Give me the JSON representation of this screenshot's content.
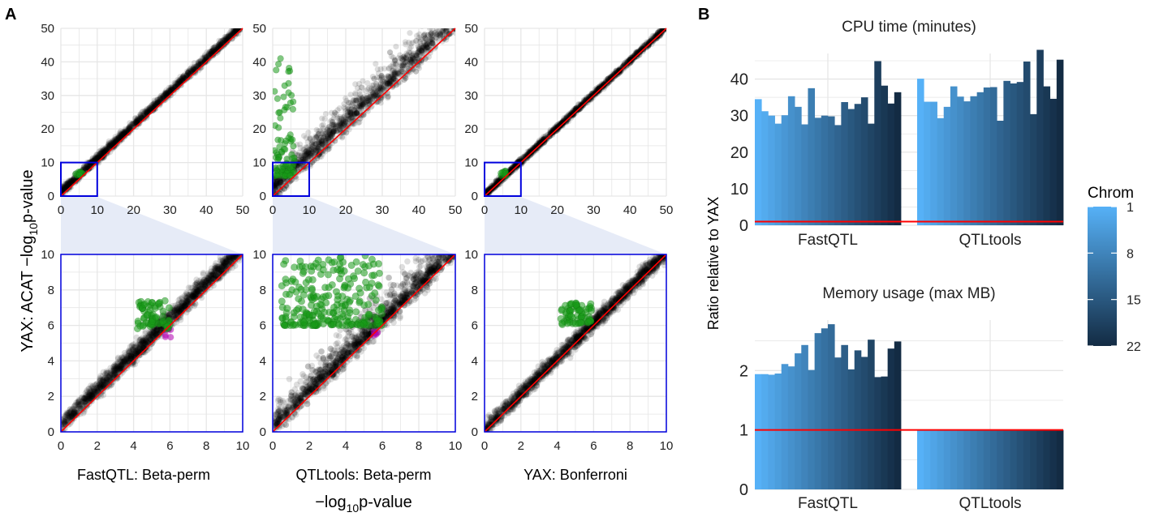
{
  "panel_labels": {
    "a": "A",
    "b": "B"
  },
  "panel_a": {
    "ylabel_prefix": "YAX: ACAT −log",
    "ylabel_sub": "10",
    "ylabel_suffix": "p-value",
    "xlabel_prefix": "−log",
    "xlabel_sub": "10",
    "xlabel_suffix": "p-value",
    "methods": [
      "FastQTL: Beta-perm",
      "QTLtools: Beta-perm",
      "YAX: Bonferroni"
    ]
  },
  "colors": {
    "points": "#000000",
    "significant_both": "#1a9a1a",
    "significant_other_only": "#b000b0",
    "diagonal": "#ff0000",
    "zoom_box": "#0000dd",
    "zoom_band": "#dde4f4",
    "grid": "#e6e6e6",
    "bar_low": "#56b1f7",
    "bar_high": "#132b43",
    "reference_line": "#ff0000"
  },
  "chart_data": [
    {
      "type": "scatter",
      "title": "FastQTL: Beta-perm",
      "view": "full",
      "xlim": [
        0,
        50
      ],
      "ylim": [
        0,
        50
      ],
      "xticks": [
        0,
        10,
        20,
        30,
        40,
        50
      ],
      "yticks": [
        0,
        10,
        20,
        30,
        40,
        50
      ],
      "point_cloud": {
        "along_diagonal_from": 0,
        "along_diagonal_to": 50,
        "offset_above_diagonal": 1.5
      },
      "highlight_green": {
        "x": [
          4,
          6
        ],
        "y": [
          6,
          7.5
        ]
      },
      "zoom_box": {
        "x": [
          0,
          10
        ],
        "y": [
          0,
          10
        ]
      },
      "reference_line": "y = x"
    },
    {
      "type": "scatter",
      "title": "QTLtools: Beta-perm",
      "view": "full",
      "xlim": [
        0,
        50
      ],
      "ylim": [
        0,
        50
      ],
      "xticks": [
        0,
        10,
        20,
        30,
        40,
        50
      ],
      "yticks": [
        0,
        10,
        20,
        30,
        40,
        50
      ],
      "point_cloud": {
        "along_diagonal_from": 0,
        "along_diagonal_to": 50,
        "spread": "wide, mostly above diagonal"
      },
      "highlight_green": {
        "x": [
          0.5,
          6
        ],
        "y": [
          6,
          41
        ]
      },
      "zoom_box": {
        "x": [
          0,
          10
        ],
        "y": [
          0,
          10
        ]
      },
      "reference_line": "y = x"
    },
    {
      "type": "scatter",
      "title": "YAX: Bonferroni",
      "view": "full",
      "xlim": [
        0,
        50
      ],
      "ylim": [
        0,
        50
      ],
      "xticks": [
        0,
        10,
        20,
        30,
        40,
        50
      ],
      "yticks": [
        0,
        10,
        20,
        30,
        40,
        50
      ],
      "point_cloud": {
        "along_diagonal_from": 0,
        "along_diagonal_to": 50,
        "spread": "tight"
      },
      "highlight_green": {
        "x": [
          4,
          6
        ],
        "y": [
          6,
          7.5
        ]
      },
      "zoom_box": {
        "x": [
          0,
          10
        ],
        "y": [
          0,
          10
        ]
      },
      "reference_line": "y = x"
    },
    {
      "type": "scatter",
      "title": "FastQTL: Beta-perm",
      "view": "zoom",
      "xlim": [
        0,
        10
      ],
      "ylim": [
        0,
        10
      ],
      "xticks": [
        0,
        2,
        4,
        6,
        8,
        10
      ],
      "yticks": [
        0,
        2,
        4,
        6,
        8,
        10
      ],
      "highlight_green": {
        "x": [
          4.2,
          6.0
        ],
        "y": [
          5.8,
          7.4
        ]
      },
      "highlight_magenta": {
        "x": [
          5.7,
          6.1
        ],
        "y": [
          5.3,
          5.8
        ]
      },
      "reference_line": "y = x"
    },
    {
      "type": "scatter",
      "title": "QTLtools: Beta-perm",
      "view": "zoom",
      "xlim": [
        0,
        10
      ],
      "ylim": [
        0,
        10
      ],
      "xticks": [
        0,
        2,
        4,
        6,
        8,
        10
      ],
      "yticks": [
        0,
        2,
        4,
        6,
        8,
        10
      ],
      "highlight_green": {
        "x": [
          0.5,
          6.0
        ],
        "y": [
          6.0,
          10.0
        ]
      },
      "highlight_magenta": {
        "x": [
          5.5,
          6.0
        ],
        "y": [
          5.4,
          5.8
        ]
      },
      "reference_line": "y = x"
    },
    {
      "type": "scatter",
      "title": "YAX: Bonferroni",
      "view": "zoom",
      "xlim": [
        0,
        10
      ],
      "ylim": [
        0,
        10
      ],
      "xticks": [
        0,
        2,
        4,
        6,
        8,
        10
      ],
      "yticks": [
        0,
        2,
        4,
        6,
        8,
        10
      ],
      "highlight_green": {
        "x": [
          4.2,
          5.9
        ],
        "y": [
          6.0,
          7.3
        ]
      },
      "reference_line": "y = x"
    },
    {
      "type": "bar",
      "title": "CPU time (minutes)",
      "ylabel": "Ratio relative to YAX",
      "ylim": [
        0,
        47
      ],
      "yticks": [
        0,
        10,
        20,
        30,
        40
      ],
      "groups": [
        "FastQTL",
        "QTLtools"
      ],
      "chromosomes": [
        1,
        2,
        3,
        4,
        5,
        6,
        7,
        8,
        9,
        10,
        11,
        12,
        13,
        14,
        15,
        16,
        17,
        18,
        19,
        20,
        21,
        22
      ],
      "series": [
        {
          "name": "FastQTL",
          "values": [
            34.5,
            31.2,
            30.0,
            27.8,
            30.1,
            35.3,
            32.4,
            27.6,
            37.5,
            29.4,
            30.0,
            29.8,
            27.4,
            33.7,
            31.8,
            33.2,
            35.0,
            27.8,
            44.9,
            38.2,
            33.3,
            36.4
          ]
        },
        {
          "name": "QTLtools",
          "values": [
            40.1,
            33.8,
            33.8,
            29.3,
            32.4,
            38.0,
            35.2,
            33.9,
            35.3,
            36.4,
            37.7,
            37.8,
            28.6,
            39.5,
            38.8,
            39.2,
            44.8,
            30.4,
            48.0,
            38.0,
            34.6,
            45.3
          ]
        }
      ],
      "legend": {
        "title": "Chrom",
        "ticks": [
          1,
          8,
          15,
          22
        ],
        "range": [
          1,
          22
        ],
        "position": "right"
      },
      "reference_line": 1
    },
    {
      "type": "bar",
      "title": "Memory usage (max MB)",
      "ylabel": "Ratio relative to YAX",
      "ylim": [
        0,
        2.85
      ],
      "yticks": [
        0,
        1,
        2
      ],
      "groups": [
        "FastQTL",
        "QTLtools"
      ],
      "chromosomes": [
        1,
        2,
        3,
        4,
        5,
        6,
        7,
        8,
        9,
        10,
        11,
        12,
        13,
        14,
        15,
        16,
        17,
        18,
        19,
        20,
        21,
        22
      ],
      "series": [
        {
          "name": "FastQTL",
          "values": [
            1.94,
            1.94,
            1.93,
            1.95,
            2.11,
            2.07,
            2.29,
            2.43,
            2.01,
            2.63,
            2.71,
            2.78,
            2.22,
            2.43,
            2.02,
            2.34,
            2.23,
            2.52,
            1.89,
            1.9,
            2.37,
            2.49
          ]
        },
        {
          "name": "QTLtools",
          "values": [
            1.0,
            1.0,
            1.0,
            1.0,
            1.0,
            1.0,
            1.0,
            1.0,
            1.0,
            1.0,
            1.0,
            1.0,
            1.0,
            1.0,
            1.0,
            1.0,
            1.0,
            1.0,
            1.0,
            1.0,
            1.0,
            1.0
          ]
        }
      ],
      "legend": {
        "title": "Chrom",
        "ticks": [
          1,
          8,
          15,
          22
        ],
        "range": [
          1,
          22
        ],
        "position": "right"
      },
      "reference_line": 1
    }
  ]
}
